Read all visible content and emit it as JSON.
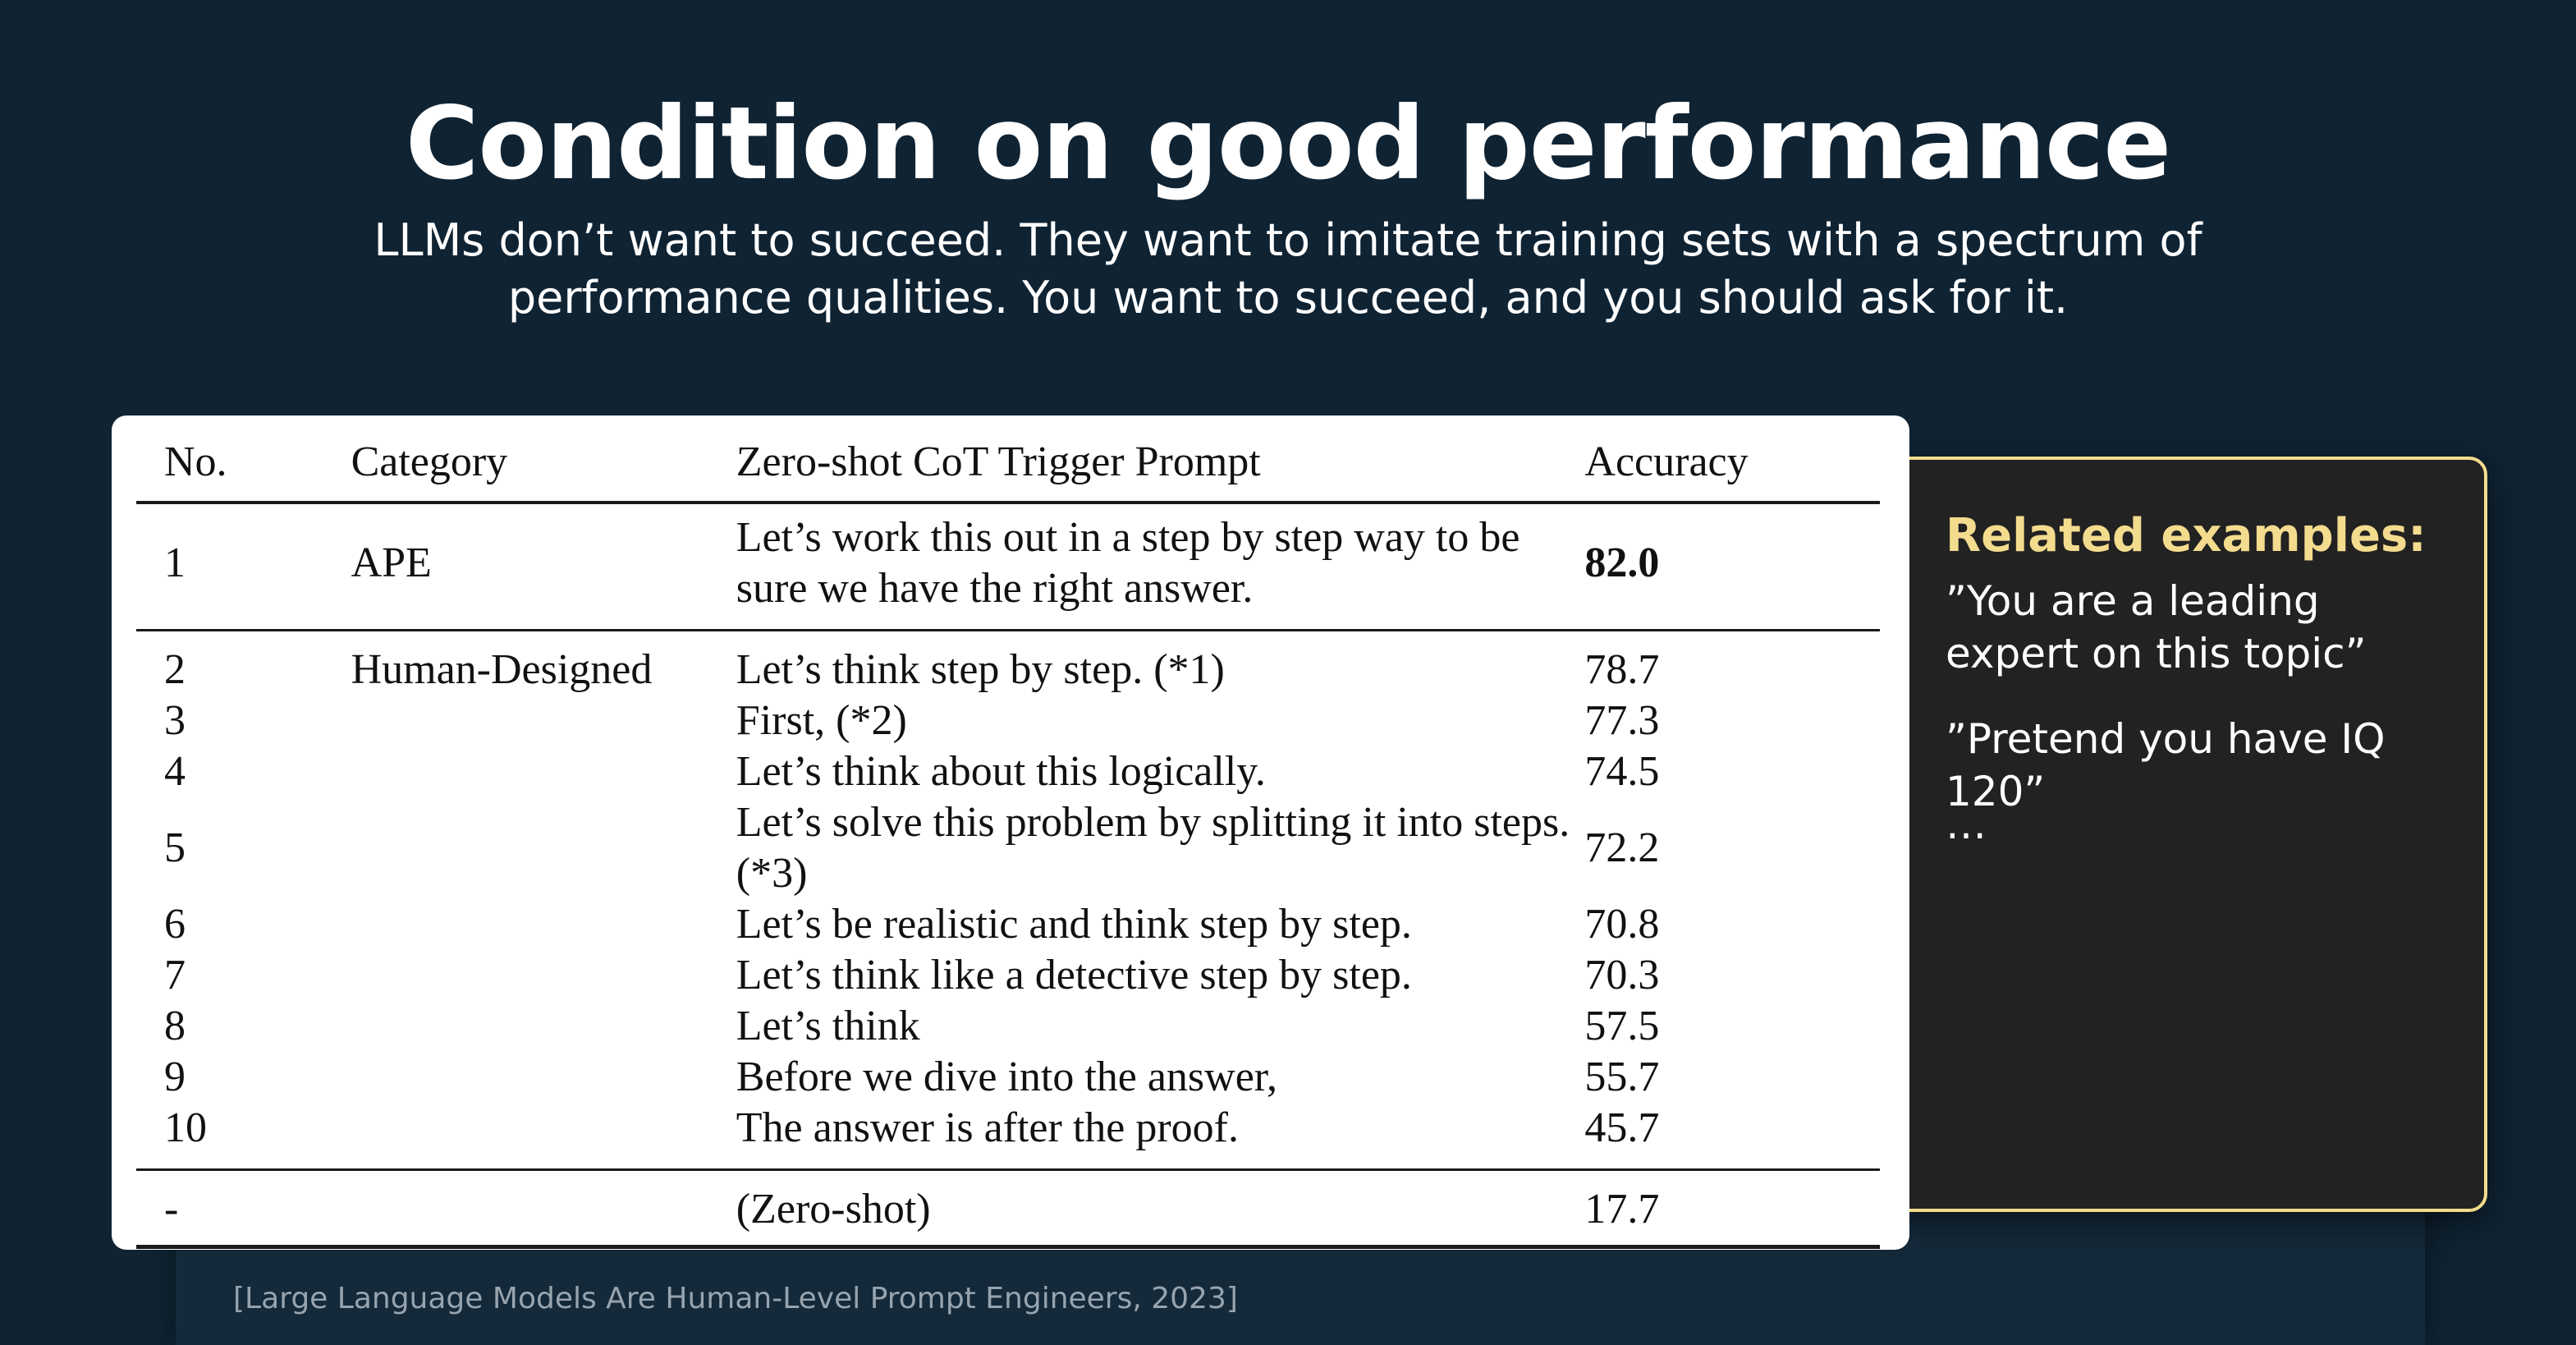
{
  "slide": {
    "title": "Condition on good performance",
    "subtitle": "LLMs don’t want to succeed. They want to imitate training sets with a spectrum of performance qualities. You want to succeed, and you should ask for it."
  },
  "table": {
    "headers": {
      "no": "No.",
      "category": "Category",
      "prompt": "Zero-shot CoT Trigger Prompt",
      "accuracy": "Accuracy"
    },
    "rows": [
      {
        "no": "1",
        "category": "APE",
        "prompt": "Let’s work this out in a step by step way to be sure we have the right answer.",
        "accuracy": "82.0"
      },
      {
        "no": "2",
        "category": "Human-Designed",
        "prompt": "Let’s think step by step. (*1)",
        "accuracy": "78.7"
      },
      {
        "no": "3",
        "category": "",
        "prompt": "First, (*2)",
        "accuracy": "77.3"
      },
      {
        "no": "4",
        "category": "",
        "prompt": "Let’s think about this logically.",
        "accuracy": "74.5"
      },
      {
        "no": "5",
        "category": "",
        "prompt": "Let’s solve this problem by splitting it into steps. (*3)",
        "accuracy": "72.2"
      },
      {
        "no": "6",
        "category": "",
        "prompt": "Let’s be realistic and think step by step.",
        "accuracy": "70.8"
      },
      {
        "no": "7",
        "category": "",
        "prompt": "Let’s think like a detective step by step.",
        "accuracy": "70.3"
      },
      {
        "no": "8",
        "category": "",
        "prompt": "Let’s think",
        "accuracy": "57.5"
      },
      {
        "no": "9",
        "category": "",
        "prompt": "Before we dive into the answer,",
        "accuracy": "55.7"
      },
      {
        "no": "10",
        "category": "",
        "prompt": "The answer is after the proof.",
        "accuracy": "45.7"
      },
      {
        "no": "-",
        "category": "",
        "prompt": "(Zero-shot)",
        "accuracy": "17.7"
      }
    ]
  },
  "examples": {
    "heading": "Related examples:",
    "items": [
      "”You are a leading expert on this topic”",
      "”Pretend you have IQ 120”",
      "…"
    ]
  },
  "citation": "[Large Language Models Are Human-Level Prompt Engineers, 2023]",
  "colors": {
    "background": "#0f2333",
    "accent": "#f4dc8e",
    "card": "#222222"
  }
}
